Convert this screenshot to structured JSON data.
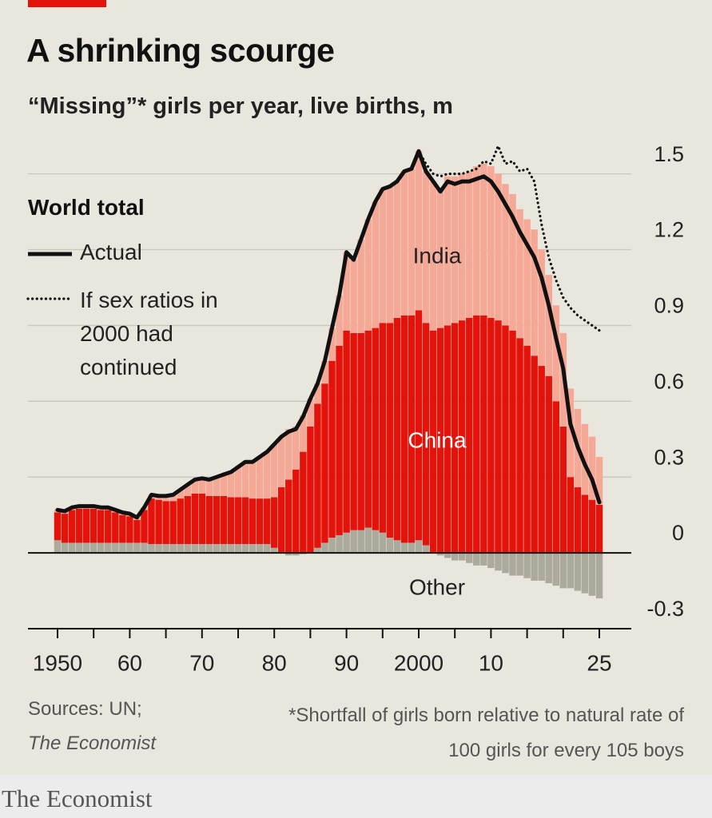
{
  "chart_data": {
    "type": "stacked-bar",
    "title": "A shrinking scourge",
    "subtitle": "“Missing”* girls per year, live births, m",
    "legend_title": "World total",
    "x": [
      1950,
      1951,
      1952,
      1953,
      1954,
      1955,
      1956,
      1957,
      1958,
      1959,
      1960,
      1961,
      1962,
      1963,
      1964,
      1965,
      1966,
      1967,
      1968,
      1969,
      1970,
      1971,
      1972,
      1973,
      1974,
      1975,
      1976,
      1977,
      1978,
      1979,
      1980,
      1981,
      1982,
      1983,
      1984,
      1985,
      1986,
      1987,
      1988,
      1989,
      1990,
      1991,
      1992,
      1993,
      1994,
      1995,
      1996,
      1997,
      1998,
      1999,
      2000,
      2001,
      2002,
      2003,
      2004,
      2005,
      2006,
      2007,
      2008,
      2009,
      2010,
      2011,
      2012,
      2013,
      2014,
      2015,
      2016,
      2017,
      2018,
      2019,
      2020,
      2021,
      2022,
      2023,
      2024,
      2025
    ],
    "series": [
      {
        "name": "Other",
        "color": "#aca99d",
        "values": [
          0.05,
          0.04,
          0.04,
          0.04,
          0.04,
          0.04,
          0.04,
          0.04,
          0.04,
          0.04,
          0.04,
          0.04,
          0.04,
          0.035,
          0.035,
          0.035,
          0.035,
          0.035,
          0.035,
          0.035,
          0.035,
          0.035,
          0.035,
          0.035,
          0.035,
          0.035,
          0.035,
          0.035,
          0.035,
          0.035,
          0.02,
          0.0,
          -0.01,
          -0.01,
          -0.005,
          0.0,
          0.02,
          0.04,
          0.06,
          0.07,
          0.08,
          0.09,
          0.09,
          0.1,
          0.09,
          0.08,
          0.06,
          0.05,
          0.04,
          0.04,
          0.05,
          0.03,
          0.0,
          -0.01,
          -0.02,
          -0.03,
          -0.03,
          -0.04,
          -0.05,
          -0.05,
          -0.06,
          -0.07,
          -0.08,
          -0.09,
          -0.09,
          -0.1,
          -0.11,
          -0.11,
          -0.12,
          -0.13,
          -0.14,
          -0.14,
          -0.15,
          -0.16,
          -0.17,
          -0.18
        ]
      },
      {
        "name": "China",
        "color": "#e3120b",
        "values": [
          0.11,
          0.115,
          0.13,
          0.135,
          0.135,
          0.135,
          0.13,
          0.13,
          0.12,
          0.11,
          0.105,
          0.09,
          0.13,
          0.18,
          0.175,
          0.17,
          0.17,
          0.18,
          0.19,
          0.2,
          0.2,
          0.19,
          0.19,
          0.19,
          0.185,
          0.185,
          0.185,
          0.18,
          0.18,
          0.18,
          0.2,
          0.26,
          0.29,
          0.33,
          0.4,
          0.5,
          0.57,
          0.63,
          0.7,
          0.75,
          0.8,
          0.78,
          0.78,
          0.78,
          0.8,
          0.83,
          0.85,
          0.88,
          0.9,
          0.9,
          0.91,
          0.88,
          0.88,
          0.89,
          0.9,
          0.91,
          0.92,
          0.93,
          0.94,
          0.94,
          0.93,
          0.92,
          0.9,
          0.88,
          0.85,
          0.82,
          0.78,
          0.74,
          0.7,
          0.6,
          0.5,
          0.3,
          0.26,
          0.23,
          0.21,
          0.19
        ]
      },
      {
        "name": "India",
        "color": "#f5a896",
        "values": [
          0.01,
          0.01,
          0.01,
          0.01,
          0.01,
          0.01,
          0.01,
          0.01,
          0.01,
          0.01,
          0.01,
          0.01,
          0.01,
          0.015,
          0.015,
          0.02,
          0.025,
          0.035,
          0.045,
          0.055,
          0.06,
          0.065,
          0.075,
          0.085,
          0.1,
          0.12,
          0.14,
          0.145,
          0.165,
          0.185,
          0.21,
          0.2,
          0.2,
          0.17,
          0.145,
          0.11,
          0.08,
          0.09,
          0.13,
          0.2,
          0.31,
          0.29,
          0.37,
          0.44,
          0.5,
          0.53,
          0.54,
          0.54,
          0.57,
          0.58,
          0.63,
          0.6,
          0.59,
          0.55,
          0.59,
          0.58,
          0.58,
          0.58,
          0.59,
          0.6,
          0.6,
          0.58,
          0.56,
          0.54,
          0.51,
          0.5,
          0.5,
          0.46,
          0.4,
          0.38,
          0.37,
          0.35,
          0.31,
          0.28,
          0.25,
          0.19
        ]
      }
    ],
    "lines": [
      {
        "name": "Actual",
        "color": "#111111",
        "style": "solid",
        "values": [
          0.17,
          0.165,
          0.18,
          0.185,
          0.185,
          0.185,
          0.18,
          0.18,
          0.17,
          0.16,
          0.155,
          0.14,
          0.18,
          0.23,
          0.225,
          0.225,
          0.23,
          0.25,
          0.27,
          0.29,
          0.295,
          0.29,
          0.3,
          0.31,
          0.32,
          0.34,
          0.36,
          0.36,
          0.38,
          0.4,
          0.43,
          0.46,
          0.48,
          0.49,
          0.54,
          0.61,
          0.67,
          0.76,
          0.89,
          1.02,
          1.19,
          1.16,
          1.24,
          1.32,
          1.39,
          1.44,
          1.45,
          1.47,
          1.51,
          1.52,
          1.59,
          1.51,
          1.47,
          1.43,
          1.47,
          1.46,
          1.47,
          1.47,
          1.48,
          1.49,
          1.47,
          1.43,
          1.38,
          1.33,
          1.27,
          1.22,
          1.17,
          1.09,
          0.98,
          0.85,
          0.73,
          0.51,
          0.42,
          0.35,
          0.29,
          0.2
        ]
      },
      {
        "name": "If sex ratios in 2000 had continued",
        "color": "#111111",
        "style": "dotted",
        "values": [
          null,
          null,
          null,
          null,
          null,
          null,
          null,
          null,
          null,
          null,
          null,
          null,
          null,
          null,
          null,
          null,
          null,
          null,
          null,
          null,
          null,
          null,
          null,
          null,
          null,
          null,
          null,
          null,
          null,
          null,
          null,
          null,
          null,
          null,
          null,
          null,
          null,
          null,
          null,
          null,
          null,
          null,
          null,
          null,
          null,
          null,
          null,
          null,
          null,
          null,
          1.59,
          1.54,
          1.5,
          1.49,
          1.5,
          1.5,
          1.5,
          1.51,
          1.52,
          1.55,
          1.54,
          1.61,
          1.54,
          1.55,
          1.51,
          1.52,
          1.47,
          1.3,
          1.17,
          1.08,
          1.01,
          0.97,
          0.94,
          0.92,
          0.9,
          0.88
        ]
      }
    ],
    "xlim": [
      1950,
      2025
    ],
    "xticks": [
      {
        "value": 1950,
        "label": "1950"
      },
      {
        "value": 1960,
        "label": "60"
      },
      {
        "value": 1970,
        "label": "70"
      },
      {
        "value": 1980,
        "label": "80"
      },
      {
        "value": 1990,
        "label": "90"
      },
      {
        "value": 2000,
        "label": "2000"
      },
      {
        "value": 2010,
        "label": "10"
      },
      {
        "value": 2025,
        "label": "25"
      }
    ],
    "xticks_minor": [
      1955,
      1965,
      1975,
      1985,
      1995,
      2005,
      2015,
      2020
    ],
    "ylim": [
      -0.3,
      1.6
    ],
    "yticks": [
      -0.3,
      0,
      0.3,
      0.6,
      0.9,
      1.2,
      1.5
    ],
    "grid": true,
    "sources": "Sources: UN;",
    "source_publication": "The Economist",
    "footnote": "*Shortfall of girls born relative to natural rate of 100 girls for every 105 boys",
    "brand": "The Economist"
  }
}
